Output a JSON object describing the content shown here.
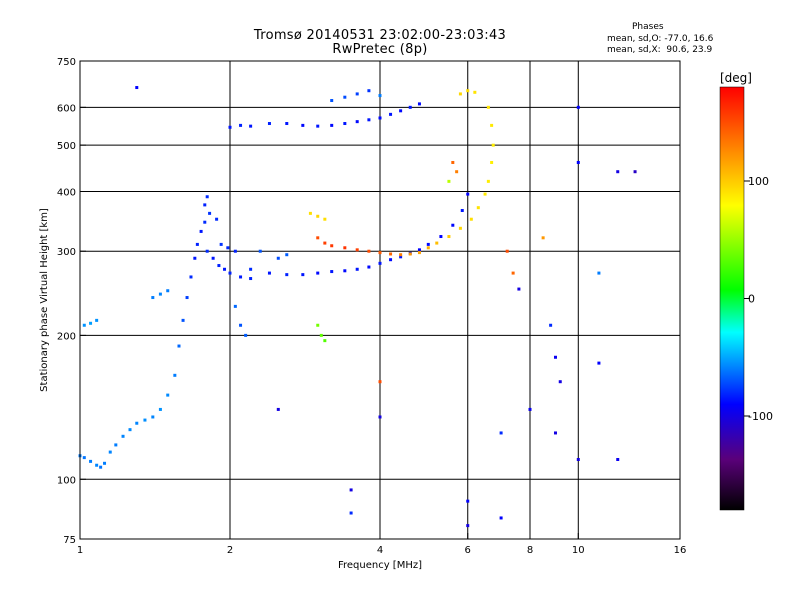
{
  "chart_data": {
    "type": "scatter",
    "title": "Tromsø 20140531 23:02:00-23:03:43",
    "subtitle": "RwPretec (8p)",
    "xlabel": "Frequency [MHz]",
    "ylabel": "Stationary phase Virtual Height [km]",
    "x_scale": "log",
    "y_scale": "log",
    "xlim": [
      1,
      16
    ],
    "ylim": [
      75,
      750
    ],
    "x_ticks": [
      1,
      2,
      4,
      6,
      8,
      10,
      16
    ],
    "x_tick_labels": [
      "1",
      "2",
      "4",
      "6",
      "8",
      "10",
      "16"
    ],
    "x_grid": [
      2,
      4,
      6,
      8,
      10
    ],
    "y_ticks": [
      75,
      100,
      200,
      300,
      400,
      500,
      600,
      750
    ],
    "y_tick_labels": [
      "75",
      "100",
      "200",
      "300",
      "400",
      "500",
      "600",
      "750"
    ],
    "y_grid": [
      100,
      200,
      300,
      400,
      500,
      600
    ],
    "grid": true,
    "colorbar": {
      "label": "[deg]",
      "range": [
        -180,
        180
      ],
      "ticks": [
        100,
        0,
        -100
      ],
      "tick_labels": [
        "100",
        "0",
        "-100"
      ]
    },
    "annotations": {
      "header": "Phases",
      "line1": "mean, sd,O: -77.0, 16.6",
      "line2": "mean, sd,X:  90.6, 23.9"
    },
    "series": [
      {
        "points": [
          [
            1.0,
            112,
            -60
          ],
          [
            1.02,
            111,
            -62
          ],
          [
            1.05,
            109,
            -60
          ],
          [
            1.08,
            107,
            -58
          ],
          [
            1.1,
            106,
            -62
          ],
          [
            1.12,
            108,
            -60
          ],
          [
            1.15,
            114,
            -58
          ],
          [
            1.18,
            118,
            -60
          ],
          [
            1.22,
            123,
            -58
          ],
          [
            1.26,
            127,
            -57
          ],
          [
            1.3,
            131,
            -58
          ],
          [
            1.35,
            133,
            -56
          ],
          [
            1.4,
            135,
            -58
          ],
          [
            1.45,
            140,
            -55
          ],
          [
            1.5,
            150,
            -57
          ],
          [
            1.55,
            165,
            -60
          ],
          [
            1.58,
            190,
            -65
          ],
          [
            1.61,
            215,
            -70
          ],
          [
            1.64,
            240,
            -75
          ],
          [
            1.67,
            265,
            -80
          ],
          [
            1.7,
            290,
            -85
          ],
          [
            1.72,
            310,
            -82
          ],
          [
            1.75,
            330,
            -85
          ],
          [
            1.78,
            345,
            -80
          ],
          [
            1.02,
            210,
            -55
          ],
          [
            1.05,
            212,
            -52
          ],
          [
            1.08,
            215,
            -55
          ],
          [
            1.4,
            240,
            -60
          ],
          [
            1.45,
            244,
            -58
          ],
          [
            1.5,
            248,
            -60
          ],
          [
            1.8,
            300,
            -80
          ],
          [
            1.85,
            290,
            -85
          ],
          [
            1.9,
            280,
            -82
          ],
          [
            1.95,
            275,
            -85
          ],
          [
            2.0,
            270,
            -82
          ],
          [
            2.1,
            265,
            -84
          ],
          [
            2.2,
            263,
            -82
          ],
          [
            1.8,
            390,
            -80
          ],
          [
            1.78,
            375,
            -82
          ],
          [
            1.82,
            360,
            -78
          ],
          [
            1.88,
            350,
            -80
          ],
          [
            1.92,
            310,
            -78
          ],
          [
            1.98,
            305,
            -80
          ],
          [
            2.05,
            300,
            -82
          ],
          [
            2.2,
            275,
            -80
          ],
          [
            2.4,
            270,
            -85
          ],
          [
            2.6,
            268,
            -82
          ],
          [
            2.8,
            268,
            -85
          ],
          [
            3.0,
            270,
            -88
          ],
          [
            3.2,
            272,
            -85
          ],
          [
            3.4,
            273,
            -88
          ],
          [
            3.6,
            275,
            -85
          ],
          [
            3.8,
            278,
            -88
          ],
          [
            4.0,
            283,
            -85
          ],
          [
            4.2,
            288,
            -88
          ],
          [
            4.4,
            292,
            -85
          ],
          [
            4.6,
            297,
            -88
          ],
          [
            4.8,
            302,
            -90
          ],
          [
            5.0,
            310,
            -88
          ],
          [
            5.3,
            322,
            -90
          ],
          [
            5.6,
            340,
            -88
          ],
          [
            5.85,
            365,
            -85
          ],
          [
            6.0,
            395,
            -90
          ],
          [
            2.0,
            545,
            -85
          ],
          [
            2.1,
            550,
            -82
          ],
          [
            2.2,
            548,
            -85
          ],
          [
            2.4,
            555,
            -82
          ],
          [
            2.6,
            555,
            -85
          ],
          [
            2.8,
            550,
            -88
          ],
          [
            3.0,
            548,
            -85
          ],
          [
            3.2,
            550,
            -88
          ],
          [
            3.4,
            555,
            -85
          ],
          [
            3.6,
            560,
            -88
          ],
          [
            3.8,
            565,
            -85
          ],
          [
            4.0,
            570,
            -88
          ],
          [
            4.2,
            580,
            -85
          ],
          [
            4.4,
            590,
            -88
          ],
          [
            4.6,
            600,
            -85
          ],
          [
            4.8,
            610,
            -88
          ],
          [
            2.05,
            230,
            -65
          ],
          [
            2.1,
            210,
            -70
          ],
          [
            2.15,
            200,
            -68
          ],
          [
            2.3,
            300,
            -70
          ],
          [
            2.5,
            290,
            -72
          ],
          [
            2.6,
            295,
            -68
          ],
          [
            3.0,
            320,
            150
          ],
          [
            3.1,
            312,
            155
          ],
          [
            3.2,
            308,
            158
          ],
          [
            3.4,
            305,
            160
          ],
          [
            3.6,
            302,
            155
          ],
          [
            3.8,
            300,
            150
          ],
          [
            4.0,
            298,
            145
          ],
          [
            4.2,
            296,
            140
          ],
          [
            4.4,
            295,
            130
          ],
          [
            4.6,
            296,
            120
          ],
          [
            4.8,
            298,
            115
          ],
          [
            5.0,
            305,
            110
          ],
          [
            5.2,
            312,
            105
          ],
          [
            5.5,
            322,
            100
          ],
          [
            5.8,
            335,
            95
          ],
          [
            6.1,
            350,
            92
          ],
          [
            6.3,
            370,
            90
          ],
          [
            6.5,
            395,
            88
          ],
          [
            6.6,
            420,
            86
          ],
          [
            6.7,
            460,
            85
          ],
          [
            6.75,
            500,
            86
          ],
          [
            6.7,
            550,
            88
          ],
          [
            6.6,
            600,
            90
          ],
          [
            5.8,
            640,
            95
          ],
          [
            6.0,
            650,
            92
          ],
          [
            6.2,
            645,
            90
          ],
          [
            2.9,
            360,
            92
          ],
          [
            3.0,
            355,
            95
          ],
          [
            3.1,
            350,
            92
          ],
          [
            3.2,
            620,
            -70
          ],
          [
            3.4,
            630,
            -72
          ],
          [
            3.6,
            640,
            -75
          ],
          [
            3.8,
            650,
            -78
          ],
          [
            4.0,
            635,
            -60
          ],
          [
            1.3,
            660,
            -90
          ],
          [
            3.0,
            210,
            40
          ],
          [
            3.05,
            200,
            35
          ],
          [
            3.1,
            195,
            30
          ],
          [
            5.5,
            420,
            60
          ],
          [
            5.6,
            460,
            140
          ],
          [
            5.7,
            440,
            130
          ],
          [
            7.2,
            300,
            150
          ],
          [
            7.4,
            270,
            140
          ],
          [
            7.6,
            250,
            -100
          ],
          [
            8.5,
            320,
            120
          ],
          [
            8.8,
            210,
            -80
          ],
          [
            9.0,
            180,
            -95
          ],
          [
            9.2,
            160,
            -100
          ],
          [
            10.0,
            600,
            -90
          ],
          [
            10.0,
            460,
            -90
          ],
          [
            11.0,
            270,
            -60
          ],
          [
            12.0,
            440,
            -100
          ],
          [
            13.0,
            440,
            -110
          ],
          [
            2.5,
            140,
            -100
          ],
          [
            3.5,
            95,
            -100
          ],
          [
            4.0,
            135,
            -100
          ],
          [
            6.0,
            90,
            -90
          ],
          [
            6.0,
            80,
            -100
          ],
          [
            7.0,
            83,
            -90
          ],
          [
            7.0,
            125,
            -80
          ],
          [
            8.0,
            140,
            -95
          ],
          [
            9.0,
            125,
            -100
          ],
          [
            10.0,
            110,
            -100
          ],
          [
            11.0,
            175,
            -90
          ],
          [
            12.0,
            110,
            -95
          ],
          [
            4.0,
            160,
            150
          ],
          [
            3.5,
            85,
            -80
          ]
        ]
      }
    ]
  }
}
